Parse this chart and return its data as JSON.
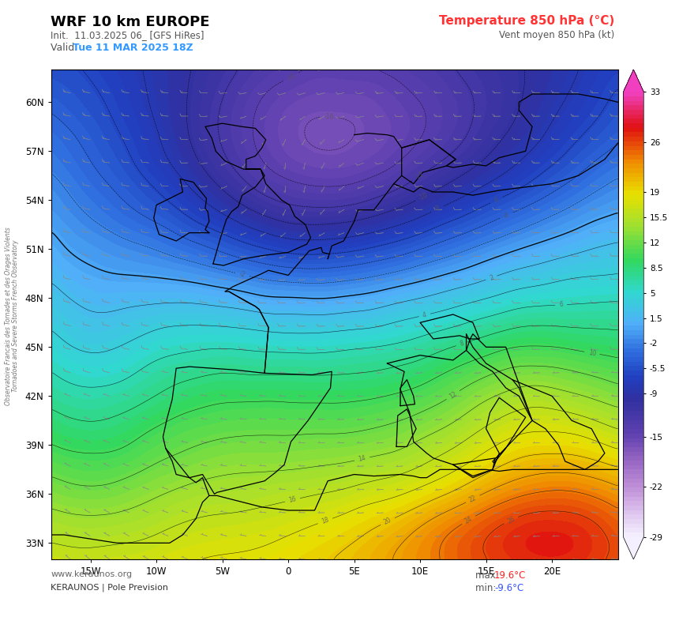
{
  "title_left": "WRF 10 km EUROPE",
  "title_right": "Temperature 850 hPa (°C)",
  "subtitle_left": "Init.  11.03.2025 06_ [GFS HiRes]",
  "subtitle_right": "Vent moyen 850 hPa (kt)",
  "valid_label_prefix": "Valid. ",
  "valid_label_date": "Tue 11 MAR 2025 18Z",
  "footer_left1": "www.keraunos.org",
  "footer_left2": "KERAUNOS | Pole Prevision",
  "footer_max_label": "max: ",
  "footer_max_val": "19.6°C",
  "footer_min_label": "min: ",
  "footer_min_val": "-9.6°C",
  "lon_min": -18,
  "lon_max": 25,
  "lat_min": 32,
  "lat_max": 62,
  "colorbar_levels": [
    -29,
    -22,
    -15,
    -9,
    -5.5,
    -2,
    1.5,
    5,
    8.5,
    12,
    15.5,
    19,
    26,
    33
  ],
  "x_ticks": [
    -15,
    -10,
    -5,
    0,
    5,
    10,
    15,
    20
  ],
  "x_tick_labels": [
    "15W",
    "10W",
    "5W",
    "0",
    "5E",
    "10E",
    "15E",
    "20E"
  ],
  "y_ticks": [
    33,
    36,
    39,
    42,
    45,
    48,
    51,
    54,
    57,
    60
  ],
  "y_tick_labels": [
    "33N",
    "36N",
    "39N",
    "42N",
    "45N",
    "48N",
    "51N",
    "54N",
    "57N",
    "60N"
  ],
  "sidebar_text": "Observatoire Francais des Tornades et des Orages Violents\nTornadoes and Severe Storms French Observatory",
  "vmin": -29,
  "vmax": 33
}
